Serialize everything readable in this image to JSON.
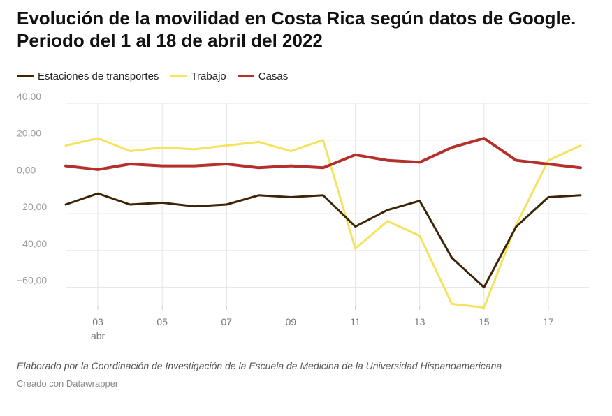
{
  "title": "Evolución de la movilidad en Costa Rica según datos de Google. Periodo del 1 al 18 de abril del 2022",
  "notes": "Elaborado por la Coordinación de Investigación de la Escuela de Medicina de la Universidad Hispanoamericana",
  "byline": "Creado con Datawrapper",
  "chart_data": {
    "type": "line",
    "title": "Evolución de la movilidad en Costa Rica según datos de Google. Periodo del 1 al 18 de abril del 2022",
    "x": [
      "2022-04-02",
      "2022-04-03",
      "2022-04-04",
      "2022-04-05",
      "2022-04-06",
      "2022-04-07",
      "2022-04-08",
      "2022-04-09",
      "2022-04-10",
      "2022-04-11",
      "2022-04-12",
      "2022-04-13",
      "2022-04-14",
      "2022-04-15",
      "2022-04-16",
      "2022-04-17",
      "2022-04-18"
    ],
    "x_ticks": [
      {
        "date": "2022-04-03",
        "label": "03",
        "sublabel": "abr"
      },
      {
        "date": "2022-04-05",
        "label": "05"
      },
      {
        "date": "2022-04-07",
        "label": "07"
      },
      {
        "date": "2022-04-09",
        "label": "09"
      },
      {
        "date": "2022-04-11",
        "label": "11"
      },
      {
        "date": "2022-04-13",
        "label": "13"
      },
      {
        "date": "2022-04-15",
        "label": "15"
      },
      {
        "date": "2022-04-17",
        "label": "17"
      }
    ],
    "y_ticks": [
      40,
      20,
      0,
      -20,
      -40,
      -60
    ],
    "y_tick_labels": [
      "40,00",
      "20,00",
      "0,00",
      "−20,00",
      "−40,00",
      "−60,00"
    ],
    "ylim": [
      -70,
      40
    ],
    "xlabel": "",
    "ylabel": "",
    "grid": true,
    "legend_position": "top-left",
    "series": [
      {
        "name": "Estaciones de transportes",
        "color": "#3d2406",
        "values": [
          -15,
          -9,
          -15,
          -14,
          -16,
          -15,
          -10,
          -11,
          -10,
          -27,
          -18,
          -13,
          -44,
          -60,
          -27,
          -11,
          -10
        ]
      },
      {
        "name": "Trabajo",
        "color": "#f5e35e",
        "values": [
          17,
          21,
          14,
          16,
          15,
          17,
          19,
          14,
          20,
          -39,
          -24,
          -32,
          -69,
          -71,
          -26,
          9,
          17
        ]
      },
      {
        "name": "Casas",
        "color": "#b5302a",
        "values": [
          6,
          4,
          7,
          6,
          6,
          7,
          5,
          6,
          5,
          12,
          9,
          8,
          16,
          21,
          9,
          7,
          5
        ]
      }
    ]
  }
}
